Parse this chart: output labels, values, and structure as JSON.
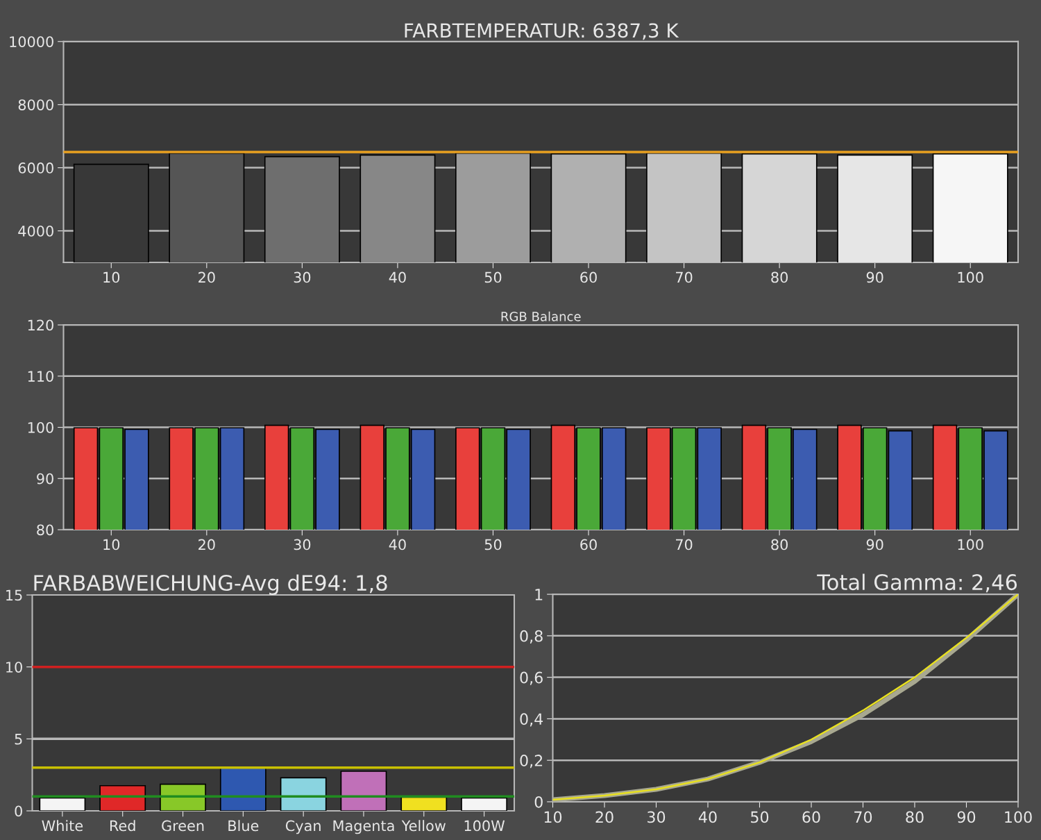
{
  "chart_data": [
    {
      "type": "bar",
      "title": "FARBTEMPERATUR: 6387,3 K",
      "categories": [
        "10",
        "20",
        "30",
        "40",
        "50",
        "60",
        "70",
        "80",
        "90",
        "100"
      ],
      "values": [
        6110,
        6460,
        6350,
        6400,
        6460,
        6440,
        6460,
        6440,
        6400,
        6440
      ],
      "colors": [
        "#383838",
        "#555555",
        "#6e6e6e",
        "#878787",
        "#9c9c9c",
        "#b0b0b0",
        "#c4c4c4",
        "#d6d6d6",
        "#e6e6e6",
        "#f6f6f6"
      ],
      "ylim": [
        3000,
        10000
      ],
      "yticks": [
        4000,
        6000,
        8000,
        10000
      ],
      "grid": "y",
      "ref_lines": [
        {
          "axis": "y",
          "value": 6500,
          "color": "#e8a020"
        }
      ]
    },
    {
      "type": "bar",
      "title": "RGB Balance",
      "categories": [
        "10",
        "20",
        "30",
        "40",
        "50",
        "60",
        "70",
        "80",
        "90",
        "100"
      ],
      "series": [
        {
          "color": "#e8403c",
          "values": [
            99.9,
            99.9,
            100.4,
            100.4,
            99.9,
            100.4,
            99.9,
            100.4,
            100.4,
            100.4
          ]
        },
        {
          "color": "#4aa838",
          "values": [
            99.9,
            99.9,
            99.9,
            99.9,
            99.9,
            99.9,
            99.9,
            99.9,
            99.9,
            99.9
          ]
        },
        {
          "color": "#3c5cb0",
          "values": [
            99.6,
            99.9,
            99.6,
            99.6,
            99.6,
            99.9,
            99.9,
            99.6,
            99.3,
            99.3
          ]
        }
      ],
      "ylim": [
        80,
        120
      ],
      "yticks": [
        80,
        90,
        100,
        110,
        120
      ],
      "grid": "y"
    },
    {
      "type": "bar",
      "title": "FARBABWEICHUNG-Avg dE94: 1,8",
      "categories": [
        "White",
        "Red",
        "Green",
        "Blue",
        "Cyan",
        "Magenta",
        "Yellow",
        "100W"
      ],
      "values": [
        0.9,
        1.75,
        1.85,
        3.0,
        2.3,
        2.75,
        0.95,
        0.9
      ],
      "colors": [
        "#f4f4f4",
        "#e02828",
        "#88c828",
        "#2e58b0",
        "#8ad4e0",
        "#c070b8",
        "#f0e020",
        "#f4f4f4"
      ],
      "ylim": [
        0,
        15
      ],
      "yticks": [
        0,
        5,
        10,
        15
      ],
      "ref_lines": [
        {
          "axis": "y",
          "value": 5,
          "color": "#b8b8b8"
        },
        {
          "axis": "y",
          "value": 10,
          "color": "#d02020"
        },
        {
          "axis": "y",
          "value": 3,
          "color": "#c8c000"
        },
        {
          "axis": "y",
          "value": 1,
          "color": "#208c20"
        }
      ]
    },
    {
      "type": "line",
      "title": "Total Gamma: 2,46",
      "x": [
        10,
        20,
        30,
        40,
        50,
        60,
        70,
        80,
        90,
        100
      ],
      "series": [
        {
          "color": "#a8a890",
          "values": [
            0.01,
            0.03,
            0.06,
            0.11,
            0.19,
            0.29,
            0.42,
            0.58,
            0.78,
            1.0
          ]
        },
        {
          "color": "#e8e020",
          "values": [
            0.01,
            0.03,
            0.06,
            0.11,
            0.19,
            0.3,
            0.44,
            0.6,
            0.79,
            1.0
          ]
        }
      ],
      "xlim": [
        10,
        100
      ],
      "xticks": [
        10,
        20,
        30,
        40,
        50,
        60,
        70,
        80,
        90,
        100
      ],
      "ylim": [
        0,
        1
      ],
      "yticks": [
        0,
        {
          "value": 0.2,
          "label": "0,2"
        },
        {
          "value": 0.4,
          "label": "0,4"
        },
        {
          "value": 0.6,
          "label": "0,6"
        },
        {
          "value": 0.8,
          "label": "0,8"
        },
        1
      ],
      "grid": "y"
    }
  ]
}
